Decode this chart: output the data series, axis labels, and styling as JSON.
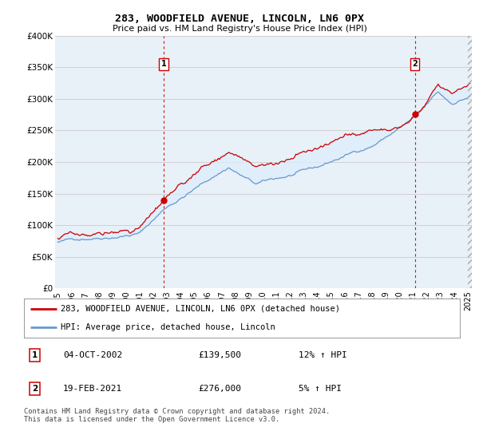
{
  "title": "283, WOODFIELD AVENUE, LINCOLN, LN6 0PX",
  "subtitle": "Price paid vs. HM Land Registry's House Price Index (HPI)",
  "legend_line1": "283, WOODFIELD AVENUE, LINCOLN, LN6 0PX (detached house)",
  "legend_line2": "HPI: Average price, detached house, Lincoln",
  "sale1_label": "1",
  "sale1_date": "04-OCT-2002",
  "sale1_price": "£139,500",
  "sale1_hpi": "12% ↑ HPI",
  "sale1_year": 2002.75,
  "sale1_value": 139500,
  "sale2_label": "2",
  "sale2_date": "19-FEB-2021",
  "sale2_price": "£276,000",
  "sale2_hpi": "5% ↑ HPI",
  "sale2_year": 2021.13,
  "sale2_value": 276000,
  "footer": "Contains HM Land Registry data © Crown copyright and database right 2024.\nThis data is licensed under the Open Government Licence v3.0.",
  "red_color": "#cc0000",
  "blue_color": "#6699cc",
  "fill_color": "#ddeeff",
  "grid_color": "#cccccc",
  "chart_bg": "#e8f0f8",
  "bg_color": "#ffffff",
  "ylim": [
    0,
    400000
  ],
  "xlim_min": 1994.8,
  "xlim_max": 2025.3,
  "yticks": [
    0,
    50000,
    100000,
    150000,
    200000,
    250000,
    300000,
    350000,
    400000
  ],
  "ytick_labels": [
    "£0",
    "£50K",
    "£100K",
    "£150K",
    "£200K",
    "£250K",
    "£300K",
    "£350K",
    "£400K"
  ],
  "xticks": [
    1995,
    1996,
    1997,
    1998,
    1999,
    2000,
    2001,
    2002,
    2003,
    2004,
    2005,
    2006,
    2007,
    2008,
    2009,
    2010,
    2011,
    2012,
    2013,
    2014,
    2015,
    2016,
    2017,
    2018,
    2019,
    2020,
    2021,
    2022,
    2023,
    2024,
    2025
  ]
}
